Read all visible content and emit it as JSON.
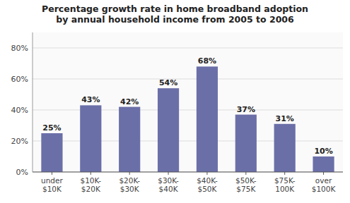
{
  "chart_data": {
    "type": "bar",
    "title": "Percentage growth rate in home broadband adoption\nby annual household income from 2005 to 2006",
    "categories": [
      "under\n$10K",
      "$10K-\n$20K",
      "$20K-\n$30K",
      "$30K-\n$40K",
      "$40K-\n$50K",
      "$50K-\n$75K",
      "$75K-\n100K",
      "over\n$100K"
    ],
    "values": [
      25,
      43,
      42,
      54,
      68,
      37,
      31,
      10
    ],
    "value_labels": [
      "25%",
      "43%",
      "42%",
      "54%",
      "68%",
      "37%",
      "31%",
      "10%"
    ],
    "data_labels": true,
    "color": "#6b6fa8",
    "ylim": [
      0,
      90
    ],
    "yticks": [
      {
        "value": 0,
        "label": "0%"
      },
      {
        "value": 20,
        "label": "20%"
      },
      {
        "value": 40,
        "label": "40%"
      },
      {
        "value": 60,
        "label": "60%"
      },
      {
        "value": 80,
        "label": "80%"
      }
    ],
    "grid": true
  }
}
